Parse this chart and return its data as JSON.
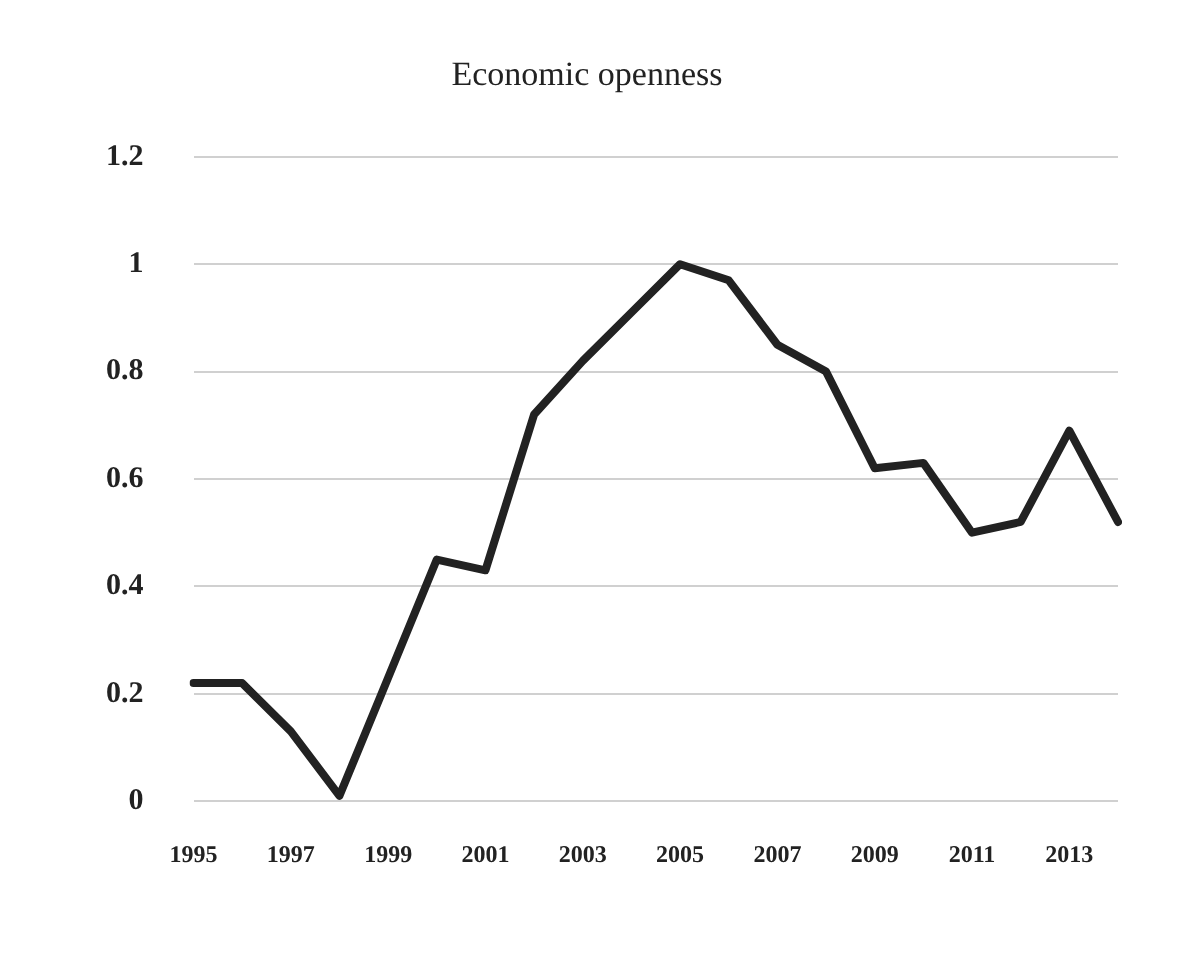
{
  "chart_data": {
    "type": "line",
    "title": "Economic openness",
    "categories": [
      "1995",
      null,
      "1997",
      null,
      "1999",
      null,
      "2001",
      null,
      "2003",
      null,
      "2005",
      null,
      "2007",
      null,
      "2009",
      null,
      "2011",
      null,
      "2013",
      null
    ],
    "series": [
      {
        "color": "#222222",
        "values": [
          0.22,
          0.22,
          0.13,
          0.01,
          0.23,
          0.45,
          0.43,
          0.72,
          0.82,
          0.91,
          1.0,
          0.97,
          0.85,
          0.8,
          0.62,
          0.63,
          0.5,
          0.52,
          0.69,
          0.52
        ]
      }
    ],
    "ylim": [
      0,
      1.2
    ],
    "yticks": [
      0,
      0.2,
      0.4,
      0.6,
      0.8,
      1,
      1.2
    ],
    "grid": "y",
    "legend": false,
    "marker": "none",
    "line_style": "solid"
  }
}
